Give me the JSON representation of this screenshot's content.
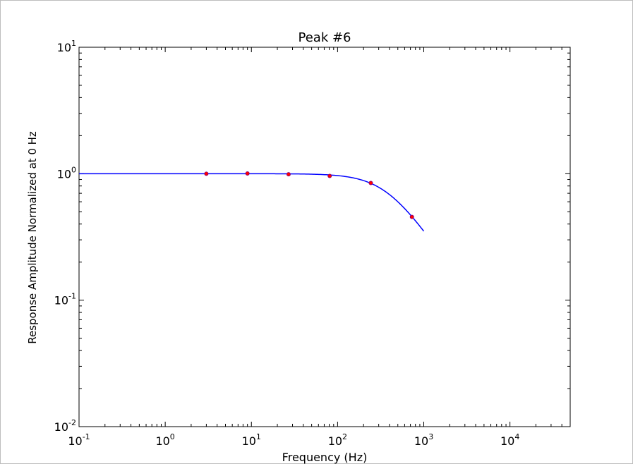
{
  "chart_data": {
    "type": "line",
    "title": "Peak #6",
    "xlabel": "Frequency (Hz)",
    "ylabel": "Response Amplitude Normalized at 0 Hz",
    "x_scale": "log",
    "y_scale": "log",
    "xlim": [
      0.1,
      50000
    ],
    "ylim": [
      0.01,
      10
    ],
    "x_ticks": [
      {
        "value": 0.1,
        "base": "10",
        "exp": "-1"
      },
      {
        "value": 1,
        "base": "10",
        "exp": "0"
      },
      {
        "value": 10,
        "base": "10",
        "exp": "1"
      },
      {
        "value": 100,
        "base": "10",
        "exp": "2"
      },
      {
        "value": 1000,
        "base": "10",
        "exp": "3"
      },
      {
        "value": 10000,
        "base": "10",
        "exp": "4"
      }
    ],
    "y_ticks": [
      {
        "value": 0.01,
        "base": "10",
        "exp": "-2"
      },
      {
        "value": 0.1,
        "base": "10",
        "exp": "-1"
      },
      {
        "value": 1,
        "base": "10",
        "exp": "0"
      },
      {
        "value": 10,
        "base": "10",
        "exp": "1"
      }
    ],
    "grid": false,
    "series": [
      {
        "kind": "fit-line",
        "color": "#0000ff",
        "model": "first-order low-pass",
        "cutoff_hz": 375,
        "x_range": [
          0.1,
          1000
        ]
      },
      {
        "kind": "measured-points",
        "color": "#ff0000",
        "edge_color": "#7f0080",
        "x": [
          3,
          9,
          27,
          81,
          243,
          729
        ],
        "y": [
          1.0,
          1.005,
          0.99,
          0.96,
          0.845,
          0.455
        ]
      }
    ]
  }
}
